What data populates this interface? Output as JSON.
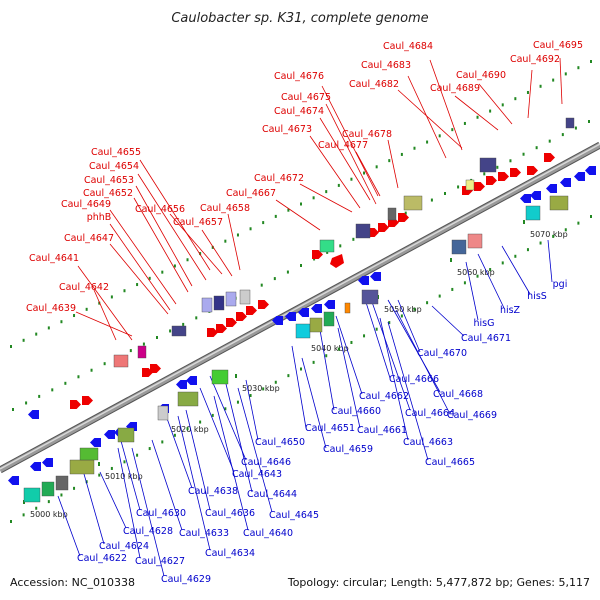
{
  "header": {
    "title": "Caulobacter sp. K31, complete genome"
  },
  "footer": {
    "accession": "Accession: NC_010338",
    "topology": "Topology: circular; Length: 5,477,872 bp; Genes: 5,117"
  },
  "colors": {
    "forward_label": "#dd0000",
    "reverse_label": "#0000cc",
    "backbone": "#9a9a9a",
    "tick": "#228822"
  },
  "ticks": [
    "5000 kbp",
    "5010 kbp",
    "5020 kbp",
    "5030 kbp",
    "5040 kbp",
    "5050 kbp",
    "5060 kbp",
    "5070 kbp"
  ],
  "forward_labels": [
    "Caul_4684",
    "Caul_4695",
    "Caul_4683",
    "Caul_4692",
    "Caul_4676",
    "Caul_4690",
    "Caul_4682",
    "Caul_4689",
    "Caul_4675",
    "Caul_4674",
    "Caul_4673",
    "Caul_4678",
    "Caul_4677",
    "Caul_4655",
    "Caul_4654",
    "Caul_4672",
    "Caul_4653",
    "Caul_4667",
    "Caul_4652",
    "Caul_4656",
    "Caul_4649",
    "Caul_4658",
    "phhB",
    "Caul_4657",
    "Caul_4647",
    "Caul_4641",
    "Caul_4642",
    "Caul_4639"
  ],
  "reverse_labels": [
    "pgi",
    "hisS",
    "hisZ",
    "hisG",
    "Caul_4671",
    "Caul_4670",
    "Caul_4666",
    "Caul_4662",
    "Caul_4668",
    "Caul_4660",
    "Caul_4664",
    "Caul_4669",
    "Caul_4651",
    "Caul_4661",
    "Caul_4663",
    "Caul_4650",
    "Caul_4659",
    "Caul_4646",
    "Caul_4665",
    "Caul_4643",
    "Caul_4638",
    "Caul_4644",
    "Caul_4630",
    "Caul_4636",
    "Caul_4645",
    "Caul_4628",
    "Caul_4633",
    "Caul_4640",
    "Caul_4624",
    "Caul_4622",
    "Caul_4627",
    "Caul_4634",
    "Caul_4629"
  ]
}
